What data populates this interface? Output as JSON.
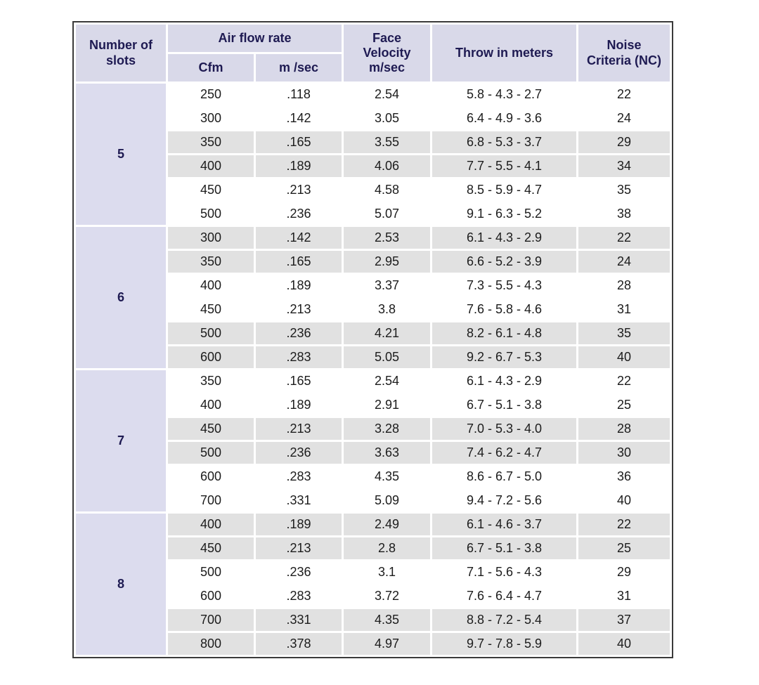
{
  "colors": {
    "header_bg": "#d9d9e9",
    "slots_col_bg": "#dcdcee",
    "stripe_bg": "#e1e1e1",
    "header_text": "#1e1a52",
    "data_text": "#1c1c1c",
    "table_border": "#3a3a3a",
    "cell_gap": "#ffffff"
  },
  "table": {
    "headers": {
      "slots": "Number of\nslots",
      "air_flow_rate": "Air flow rate",
      "cfm": "Cfm",
      "m_sec": "m /sec",
      "face_velocity": "Face\nVelocity\nm/sec",
      "throw": "Throw in meters",
      "noise": "Noise\nCriteria (NC)"
    },
    "columns": [
      "Number of slots",
      "Cfm",
      "m /sec",
      "Face Velocity m/sec",
      "Throw in meters",
      "Noise Criteria (NC)"
    ],
    "groups": [
      {
        "slots": "5",
        "rows": [
          [
            "250",
            ".118",
            "2.54",
            "5.8 - 4.3 - 2.7",
            "22"
          ],
          [
            "300",
            ".142",
            "3.05",
            "6.4 - 4.9 - 3.6",
            "24"
          ],
          [
            "350",
            ".165",
            "3.55",
            "6.8 - 5.3 - 3.7",
            "29"
          ],
          [
            "400",
            ".189",
            "4.06",
            "7.7 - 5.5 - 4.1",
            "34"
          ],
          [
            "450",
            ".213",
            "4.58",
            "8.5 - 5.9 - 4.7",
            "35"
          ],
          [
            "500",
            ".236",
            "5.07",
            "9.1 - 6.3 - 5.2",
            "38"
          ]
        ]
      },
      {
        "slots": "6",
        "rows": [
          [
            "300",
            ".142",
            "2.53",
            "6.1 - 4.3 - 2.9",
            "22"
          ],
          [
            "350",
            ".165",
            "2.95",
            "6.6 - 5.2 - 3.9",
            "24"
          ],
          [
            "400",
            ".189",
            "3.37",
            "7.3 - 5.5 - 4.3",
            "28"
          ],
          [
            "450",
            ".213",
            "3.8",
            "7.6 - 5.8 - 4.6",
            "31"
          ],
          [
            "500",
            ".236",
            "4.21",
            "8.2 - 6.1 - 4.8",
            "35"
          ],
          [
            "600",
            ".283",
            "5.05",
            "9.2 - 6.7 - 5.3",
            "40"
          ]
        ]
      },
      {
        "slots": "7",
        "rows": [
          [
            "350",
            ".165",
            "2.54",
            "6.1 - 4.3 - 2.9",
            "22"
          ],
          [
            "400",
            ".189",
            "2.91",
            "6.7 - 5.1 - 3.8",
            "25"
          ],
          [
            "450",
            ".213",
            "3.28",
            "7.0 - 5.3 - 4.0",
            "28"
          ],
          [
            "500",
            ".236",
            "3.63",
            "7.4 - 6.2 - 4.7",
            "30"
          ],
          [
            "600",
            ".283",
            "4.35",
            "8.6 - 6.7 - 5.0",
            "36"
          ],
          [
            "700",
            ".331",
            "5.09",
            "9.4 - 7.2 - 5.6",
            "40"
          ]
        ]
      },
      {
        "slots": "8",
        "rows": [
          [
            "400",
            ".189",
            "2.49",
            "6.1 - 4.6 - 3.7",
            "22"
          ],
          [
            "450",
            ".213",
            "2.8",
            "6.7 - 5.1 - 3.8",
            "25"
          ],
          [
            "500",
            ".236",
            "3.1",
            "7.1 - 5.6 - 4.3",
            "29"
          ],
          [
            "600",
            ".283",
            "3.72",
            "7.6 - 6.4 - 4.7",
            "31"
          ],
          [
            "700",
            ".331",
            "4.35",
            "8.8 - 7.2 - 5.4",
            "37"
          ],
          [
            "800",
            ".378",
            "4.97",
            "9.7 - 7.8 - 5.9",
            "40"
          ]
        ]
      }
    ]
  }
}
